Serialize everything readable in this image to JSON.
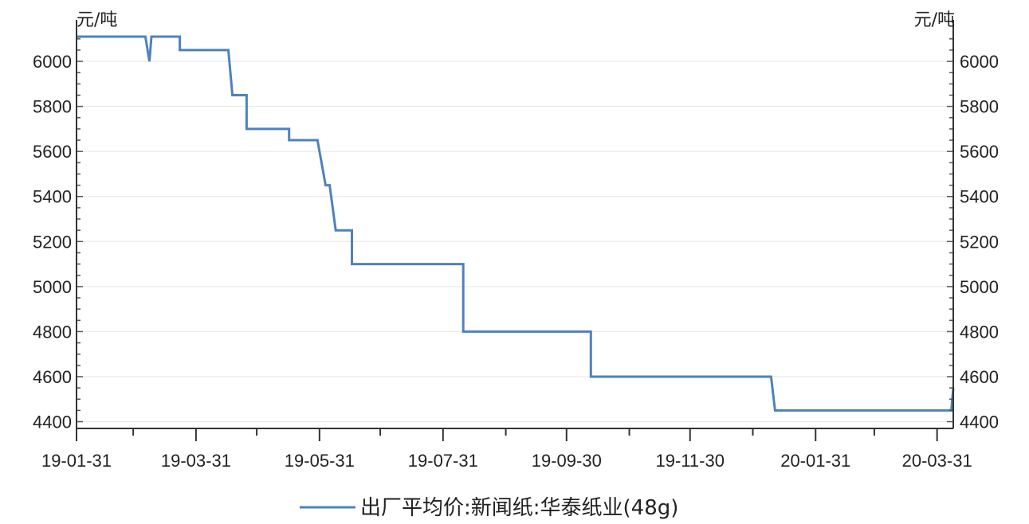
{
  "chart_data": {
    "type": "line",
    "y_unit_left": "元/吨",
    "y_unit_right": "元/吨",
    "ylim": [
      4370,
      6170
    ],
    "y_ticks": [
      4400,
      4600,
      4800,
      5000,
      5200,
      5400,
      5600,
      5800,
      6000
    ],
    "x_ticks": [
      "19-01-31",
      "19-03-31",
      "19-05-31",
      "19-07-31",
      "19-09-30",
      "19-11-30",
      "20-01-31",
      "20-03-31"
    ],
    "grid": "horizontal",
    "legend_position": "bottom",
    "series": [
      {
        "name": "出厂平均价:新闻纸:华泰纸业(48g)",
        "color": "#4f81bd",
        "points": [
          [
            "2019-01-31",
            6110
          ],
          [
            "2019-03-06",
            6110
          ],
          [
            "2019-03-08",
            6000
          ],
          [
            "2019-03-09",
            6110
          ],
          [
            "2019-03-23",
            6110
          ],
          [
            "2019-03-23",
            6050
          ],
          [
            "2019-04-16",
            6050
          ],
          [
            "2019-04-18",
            5850
          ],
          [
            "2019-04-25",
            5850
          ],
          [
            "2019-04-25",
            5700
          ],
          [
            "2019-05-16",
            5700
          ],
          [
            "2019-05-16",
            5650
          ],
          [
            "2019-05-30",
            5650
          ],
          [
            "2019-06-03",
            5450
          ],
          [
            "2019-06-05",
            5450
          ],
          [
            "2019-06-08",
            5250
          ],
          [
            "2019-06-16",
            5250
          ],
          [
            "2019-06-16",
            5100
          ],
          [
            "2019-08-10",
            5100
          ],
          [
            "2019-08-10",
            4800
          ],
          [
            "2019-10-12",
            4800
          ],
          [
            "2019-10-12",
            4600
          ],
          [
            "2020-01-09",
            4600
          ],
          [
            "2020-01-11",
            4450
          ],
          [
            "2020-04-07",
            4450
          ],
          [
            "2020-04-08",
            4550
          ]
        ]
      }
    ]
  }
}
